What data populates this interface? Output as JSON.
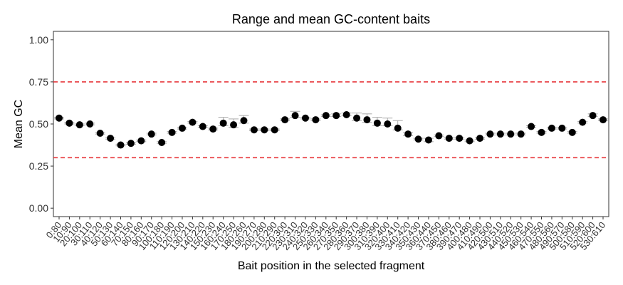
{
  "chart_data": {
    "type": "scatter",
    "title": "Range and mean GC-content baits",
    "xlabel": "Bait position in the selected fragment",
    "ylabel": "Mean GC",
    "ylim": [
      -0.05,
      1.05
    ],
    "yticks": [
      0.0,
      0.25,
      0.5,
      0.75,
      1.0
    ],
    "ytick_labels": [
      "0.00",
      "0.25",
      "0.50",
      "0.75",
      "1.00"
    ],
    "grid": false,
    "reference_lines": [
      {
        "y": 0.75,
        "color": "#e8383d",
        "style": "dashed"
      },
      {
        "y": 0.3,
        "color": "#e8383d",
        "style": "dashed"
      }
    ],
    "marker_color": "#000000",
    "errorbar_color": "#aaaaaa",
    "categories": [
      "0:80",
      "10:90",
      "20:100",
      "30:110",
      "40:120",
      "50:130",
      "60:140",
      "70:150",
      "80:160",
      "90:170",
      "100:180",
      "110:190",
      "120:200",
      "130:210",
      "140:220",
      "150:230",
      "160:240",
      "170:250",
      "180:260",
      "190:270",
      "200:280",
      "210:290",
      "220:300",
      "230:310",
      "240:320",
      "250:330",
      "260:340",
      "270:350",
      "280:360",
      "290:370",
      "300:380",
      "310:390",
      "320:400",
      "330:410",
      "340:420",
      "350:430",
      "360:440",
      "370:450",
      "380:460",
      "390:470",
      "400:480",
      "410:490",
      "420:500",
      "430:510",
      "440:520",
      "450:530",
      "460:540",
      "470:550",
      "480:560",
      "490:570",
      "500:580",
      "510:590",
      "520:600",
      "530:610"
    ],
    "values": [
      0.535,
      0.505,
      0.495,
      0.5,
      0.445,
      0.415,
      0.375,
      0.385,
      0.4,
      0.44,
      0.39,
      0.45,
      0.475,
      0.51,
      0.485,
      0.47,
      0.505,
      0.495,
      0.52,
      0.465,
      0.465,
      0.465,
      0.525,
      0.55,
      0.535,
      0.525,
      0.55,
      0.55,
      0.555,
      0.535,
      0.525,
      0.505,
      0.5,
      0.475,
      0.44,
      0.41,
      0.405,
      0.43,
      0.415,
      0.415,
      0.4,
      0.415,
      0.44,
      0.44,
      0.44,
      0.44,
      0.485,
      0.45,
      0.475,
      0.475,
      0.45,
      0.51,
      0.55,
      0.525
    ],
    "err_low": [
      0.53,
      0.5,
      0.49,
      0.495,
      0.44,
      0.41,
      0.37,
      0.38,
      0.395,
      0.435,
      0.385,
      0.445,
      0.47,
      0.505,
      0.48,
      0.465,
      0.49,
      0.48,
      0.505,
      0.46,
      0.46,
      0.46,
      0.52,
      0.54,
      0.53,
      0.52,
      0.545,
      0.545,
      0.55,
      0.52,
      0.51,
      0.49,
      0.49,
      0.465,
      0.43,
      0.405,
      0.395,
      0.425,
      0.41,
      0.41,
      0.395,
      0.41,
      0.435,
      0.435,
      0.435,
      0.435,
      0.48,
      0.445,
      0.47,
      0.47,
      0.445,
      0.505,
      0.545,
      0.52
    ],
    "err_high": [
      0.54,
      0.51,
      0.5,
      0.505,
      0.45,
      0.42,
      0.38,
      0.39,
      0.405,
      0.445,
      0.395,
      0.455,
      0.48,
      0.515,
      0.49,
      0.475,
      0.54,
      0.53,
      0.55,
      0.47,
      0.47,
      0.47,
      0.53,
      0.575,
      0.54,
      0.53,
      0.555,
      0.56,
      0.565,
      0.565,
      0.56,
      0.54,
      0.535,
      0.52,
      0.45,
      0.415,
      0.415,
      0.435,
      0.42,
      0.42,
      0.405,
      0.42,
      0.445,
      0.445,
      0.445,
      0.445,
      0.49,
      0.455,
      0.48,
      0.48,
      0.455,
      0.515,
      0.56,
      0.53
    ]
  }
}
